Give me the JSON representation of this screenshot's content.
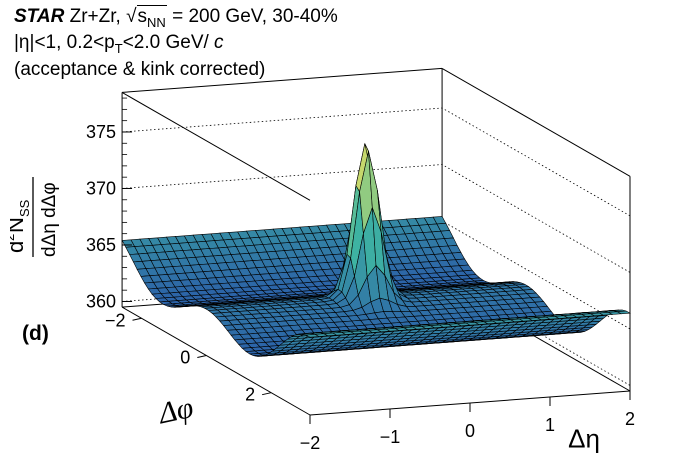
{
  "header": {
    "experiment": "STAR",
    "system": "Zr+Zr,",
    "energy_sqrt": "s",
    "energy_sub": "NN",
    "energy_rest": "= 200 GeV, 30-40%",
    "cuts_a": "|η|<1, 0.2<p",
    "cuts_sub": "T",
    "cuts_b": "<2.0 GeV/",
    "cuts_c": " c",
    "note": "(acceptance & kink corrected)"
  },
  "panel_label": "(d)",
  "colors": {
    "surface_low": "#2b5fa8",
    "surface_mid": "#3fb6a2",
    "surface_high": "#f3e35a",
    "mesh": "#000000",
    "frame": "#000000"
  },
  "chart_data": {
    "type": "surface",
    "title": "",
    "xlabel": "Δη",
    "ylabel": "Δφ",
    "zlabel_parts": {
      "d2": "d",
      "sup": "2",
      "N": "N",
      "sub": "SS",
      "den": "dΔη dΔφ"
    },
    "x_ticks": [
      "−2",
      "−1",
      "0",
      "1",
      "2"
    ],
    "y_ticks": [
      "−2",
      "0",
      "2"
    ],
    "z_ticks": [
      "360",
      "365",
      "370",
      "375"
    ],
    "xlim": [
      -2,
      2
    ],
    "ylim": [
      -2.6,
      3.2
    ],
    "zlim": [
      359.5,
      378.5
    ],
    "grid": "back-wall dotted",
    "model": {
      "baseline": 363.5,
      "near_side_peak_height": 14.0,
      "near_side_eta_width": 0.14,
      "near_side_phi_width": 0.18,
      "away_side_amplitude": -1.4,
      "dphi_modulation_amplitude": 1.5
    }
  }
}
